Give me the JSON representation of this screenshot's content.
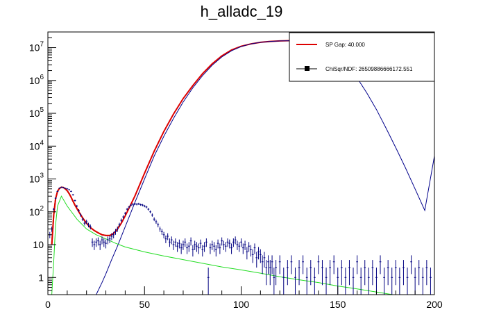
{
  "chart_data": {
    "type": "scatter",
    "title": "h_alladc_19",
    "xlabel": "",
    "ylabel": "",
    "xlim": [
      0,
      200
    ],
    "ylim": [
      0.3,
      30000000
    ],
    "yscale": "log",
    "grid": false,
    "legend_position": "top-right",
    "x_ticks": [
      {
        "value": 0,
        "label": "0"
      },
      {
        "value": 50,
        "label": "50"
      },
      {
        "value": 100,
        "label": "100"
      },
      {
        "value": 150,
        "label": "150"
      },
      {
        "value": 200,
        "label": "200"
      }
    ],
    "y_ticks": [
      {
        "value": 1,
        "label": "1"
      },
      {
        "value": 10,
        "label": "10"
      },
      {
        "value": 100,
        "base": "10",
        "exp": "2"
      },
      {
        "value": 1000,
        "base": "10",
        "exp": "3"
      },
      {
        "value": 10000,
        "base": "10",
        "exp": "4"
      },
      {
        "value": 100000,
        "base": "10",
        "exp": "5"
      },
      {
        "value": 1000000,
        "base": "10",
        "exp": "6"
      },
      {
        "value": 10000000,
        "base": "10",
        "exp": "7"
      }
    ],
    "legend": [
      {
        "label": "SP Gap: 40.000",
        "color": "#dd0000",
        "marker": "line"
      },
      {
        "label": "ChiSqr/NDF: 26509886666172.551",
        "color": "#000000",
        "marker": "square-line"
      }
    ],
    "colors": {
      "data": "#000080",
      "fit_total": "#dd0000",
      "pedestal_fit": "#a36c00",
      "gaussian_component": "#00008b",
      "background_component": "#22dd22"
    },
    "points": [
      {
        "x": 1,
        "y": 20
      },
      {
        "x": 2,
        "y": 30
      },
      {
        "x": 3,
        "y": 120
      },
      {
        "x": 4,
        "y": 260
      },
      {
        "x": 5,
        "y": 420
      },
      {
        "x": 6,
        "y": 520
      },
      {
        "x": 7,
        "y": 560
      },
      {
        "x": 8,
        "y": 550
      },
      {
        "x": 9,
        "y": 520
      },
      {
        "x": 10,
        "y": 500
      },
      {
        "x": 11,
        "y": 470
      },
      {
        "x": 12,
        "y": 420
      },
      {
        "x": 13,
        "y": 330
      },
      {
        "x": 14,
        "y": 220
      },
      {
        "x": 15,
        "y": 150
      },
      {
        "x": 16,
        "y": 110
      },
      {
        "x": 17,
        "y": 80
      },
      {
        "x": 18,
        "y": 60
      },
      {
        "x": 19,
        "y": 45
      },
      {
        "x": 20,
        "y": 50
      },
      {
        "x": 21,
        "y": 40
      },
      {
        "x": 22,
        "y": 35
      },
      {
        "x": 23,
        "y": 12
      },
      {
        "x": 24,
        "y": 10
      },
      {
        "x": 25,
        "y": 12
      },
      {
        "x": 26,
        "y": 13
      },
      {
        "x": 27,
        "y": 10
      },
      {
        "x": 28,
        "y": 14
      },
      {
        "x": 29,
        "y": 12
      },
      {
        "x": 30,
        "y": 11
      },
      {
        "x": 31,
        "y": 14
      },
      {
        "x": 32,
        "y": 15
      },
      {
        "x": 33,
        "y": 18
      },
      {
        "x": 34,
        "y": 20
      },
      {
        "x": 35,
        "y": 25
      },
      {
        "x": 36,
        "y": 30
      },
      {
        "x": 37,
        "y": 40
      },
      {
        "x": 38,
        "y": 55
      },
      {
        "x": 39,
        "y": 70
      },
      {
        "x": 40,
        "y": 90
      },
      {
        "x": 41,
        "y": 120
      },
      {
        "x": 42,
        "y": 140
      },
      {
        "x": 43,
        "y": 160
      },
      {
        "x": 44,
        "y": 170
      },
      {
        "x": 45,
        "y": 175
      },
      {
        "x": 46,
        "y": 170
      },
      {
        "x": 47,
        "y": 175
      },
      {
        "x": 48,
        "y": 165
      },
      {
        "x": 49,
        "y": 160
      },
      {
        "x": 50,
        "y": 150
      },
      {
        "x": 51,
        "y": 140
      },
      {
        "x": 52,
        "y": 120
      },
      {
        "x": 53,
        "y": 100
      },
      {
        "x": 54,
        "y": 80
      },
      {
        "x": 55,
        "y": 60
      },
      {
        "x": 56,
        "y": 50
      },
      {
        "x": 57,
        "y": 40
      },
      {
        "x": 58,
        "y": 30
      },
      {
        "x": 59,
        "y": 25
      },
      {
        "x": 60,
        "y": 20
      },
      {
        "x": 61,
        "y": 15
      },
      {
        "x": 62,
        "y": 18
      },
      {
        "x": 63,
        "y": 12
      },
      {
        "x": 64,
        "y": 14
      },
      {
        "x": 65,
        "y": 10
      },
      {
        "x": 66,
        "y": 12
      },
      {
        "x": 67,
        "y": 9
      },
      {
        "x": 68,
        "y": 11
      },
      {
        "x": 69,
        "y": 8
      },
      {
        "x": 70,
        "y": 10
      },
      {
        "x": 71,
        "y": 12
      },
      {
        "x": 72,
        "y": 8
      },
      {
        "x": 73,
        "y": 9
      },
      {
        "x": 74,
        "y": 13
      },
      {
        "x": 75,
        "y": 7
      },
      {
        "x": 76,
        "y": 10
      },
      {
        "x": 77,
        "y": 9
      },
      {
        "x": 78,
        "y": 8
      },
      {
        "x": 79,
        "y": 11
      },
      {
        "x": 80,
        "y": 7
      },
      {
        "x": 81,
        "y": 9
      },
      {
        "x": 82,
        "y": 12
      },
      {
        "x": 83,
        "y": 1
      },
      {
        "x": 84,
        "y": 8
      },
      {
        "x": 85,
        "y": 10
      },
      {
        "x": 86,
        "y": 9
      },
      {
        "x": 87,
        "y": 7
      },
      {
        "x": 88,
        "y": 11
      },
      {
        "x": 89,
        "y": 8
      },
      {
        "x": 90,
        "y": 13
      },
      {
        "x": 91,
        "y": 10
      },
      {
        "x": 92,
        "y": 9
      },
      {
        "x": 93,
        "y": 12
      },
      {
        "x": 94,
        "y": 11
      },
      {
        "x": 95,
        "y": 8
      },
      {
        "x": 96,
        "y": 12
      },
      {
        "x": 97,
        "y": 14
      },
      {
        "x": 98,
        "y": 10
      },
      {
        "x": 99,
        "y": 9
      },
      {
        "x": 100,
        "y": 12
      },
      {
        "x": 101,
        "y": 8
      },
      {
        "x": 102,
        "y": 10
      },
      {
        "x": 103,
        "y": 6
      },
      {
        "x": 104,
        "y": 9
      },
      {
        "x": 105,
        "y": 7
      },
      {
        "x": 106,
        "y": 5
      },
      {
        "x": 107,
        "y": 8
      },
      {
        "x": 108,
        "y": 4
      },
      {
        "x": 109,
        "y": 6
      },
      {
        "x": 110,
        "y": 5
      },
      {
        "x": 111,
        "y": 3
      },
      {
        "x": 112,
        "y": 4
      },
      {
        "x": 113,
        "y": 2
      },
      {
        "x": 114,
        "y": 3
      },
      {
        "x": 115,
        "y": 2
      },
      {
        "x": 116,
        "y": 3
      },
      {
        "x": 117,
        "y": 1
      },
      {
        "x": 118,
        "y": 2
      },
      {
        "x": 120,
        "y": 3
      },
      {
        "x": 122,
        "y": 1
      },
      {
        "x": 124,
        "y": 2
      },
      {
        "x": 126,
        "y": 3
      },
      {
        "x": 128,
        "y": 1
      },
      {
        "x": 130,
        "y": 2
      },
      {
        "x": 132,
        "y": 3
      },
      {
        "x": 134,
        "y": 1
      },
      {
        "x": 136,
        "y": 2
      },
      {
        "x": 138,
        "y": 1
      },
      {
        "x": 140,
        "y": 3
      },
      {
        "x": 142,
        "y": 2
      },
      {
        "x": 144,
        "y": 1
      },
      {
        "x": 146,
        "y": 2
      },
      {
        "x": 148,
        "y": 3
      },
      {
        "x": 150,
        "y": 1
      },
      {
        "x": 152,
        "y": 2
      },
      {
        "x": 154,
        "y": 1
      },
      {
        "x": 156,
        "y": 2
      },
      {
        "x": 158,
        "y": 1
      },
      {
        "x": 160,
        "y": 3
      },
      {
        "x": 162,
        "y": 1
      },
      {
        "x": 164,
        "y": 2
      },
      {
        "x": 166,
        "y": 1
      },
      {
        "x": 168,
        "y": 2
      },
      {
        "x": 170,
        "y": 1
      },
      {
        "x": 172,
        "y": 3
      },
      {
        "x": 174,
        "y": 1
      },
      {
        "x": 176,
        "y": 2
      },
      {
        "x": 178,
        "y": 1
      },
      {
        "x": 180,
        "y": 2
      },
      {
        "x": 182,
        "y": 1
      },
      {
        "x": 184,
        "y": 2
      },
      {
        "x": 186,
        "y": 1
      },
      {
        "x": 188,
        "y": 3
      },
      {
        "x": 190,
        "y": 1
      },
      {
        "x": 192,
        "y": 2
      },
      {
        "x": 194,
        "y": 1
      },
      {
        "x": 196,
        "y": 2
      },
      {
        "x": 198,
        "y": 1
      }
    ],
    "series": [
      {
        "role": "pedestal_fit",
        "x": [
          2,
          3,
          4,
          5,
          6,
          7,
          8,
          9,
          10,
          11,
          12,
          13,
          14,
          16,
          18,
          20,
          22,
          24,
          26,
          28,
          30,
          32,
          33,
          34,
          35,
          36,
          37
        ],
        "y": [
          10,
          80,
          250,
          420,
          520,
          560,
          550,
          500,
          440,
          360,
          280,
          210,
          160,
          100,
          65,
          45,
          33,
          27,
          23,
          20,
          19,
          19,
          20,
          22,
          25,
          30,
          38
        ]
      },
      {
        "role": "fit_total",
        "x": [
          2,
          3,
          4,
          5,
          6,
          7,
          8,
          9,
          10,
          11,
          12,
          13,
          14,
          16,
          18,
          20,
          22,
          24,
          26,
          28,
          30,
          32,
          34,
          36,
          38,
          40,
          42,
          45,
          50,
          55,
          60,
          65,
          70,
          75,
          80,
          85,
          90,
          95,
          100,
          105,
          110,
          115,
          120,
          125,
          130
        ],
        "y": [
          10,
          80,
          250,
          420,
          520,
          560,
          550,
          500,
          440,
          360,
          280,
          210,
          160,
          100,
          65,
          45,
          33,
          27,
          23,
          20,
          19,
          19,
          22,
          30,
          45,
          75,
          130,
          300,
          1500,
          7000,
          28000,
          95000,
          280000,
          700000,
          1600000,
          3200000,
          5600000,
          8500000,
          11000000,
          13000000,
          14500000,
          15500000,
          16000000,
          16300000,
          16500000
        ]
      },
      {
        "role": "gaussian_component",
        "x": [
          25,
          28,
          30,
          33,
          36,
          40,
          45,
          50,
          55,
          60,
          65,
          70,
          75,
          80,
          85,
          90,
          95,
          100,
          105,
          110,
          115,
          120,
          125,
          130,
          135,
          140,
          145,
          150,
          155,
          160,
          165,
          170,
          175,
          180,
          185,
          190,
          195,
          200
        ],
        "y": [
          0.3,
          0.7,
          1.3,
          3.5,
          9,
          35,
          190,
          1000,
          5000,
          20000,
          70000,
          220000,
          600000,
          1400000,
          2900000,
          5200000,
          8000000,
          10800000,
          13000000,
          14500000,
          15500000,
          16000000,
          16200000,
          16100000,
          15500000,
          13500000,
          10000000,
          6000000,
          3000000,
          1200000,
          420000,
          130000,
          35000,
          9000,
          2200,
          500,
          110,
          5000
        ]
      },
      {
        "role": "background_component",
        "x": [
          2,
          3,
          4,
          5,
          7,
          10,
          15,
          20,
          25,
          30,
          35,
          40,
          50,
          60,
          70,
          80,
          90,
          100,
          110,
          120,
          130,
          140,
          150,
          160,
          170,
          180
        ],
        "y": [
          0.3,
          3,
          40,
          150,
          300,
          150,
          60,
          30,
          20,
          15,
          11,
          8.5,
          6,
          4.5,
          3.5,
          2.7,
          2.1,
          1.7,
          1.35,
          1.05,
          0.85,
          0.7,
          0.55,
          0.45,
          0.36,
          0.29
        ]
      }
    ]
  }
}
